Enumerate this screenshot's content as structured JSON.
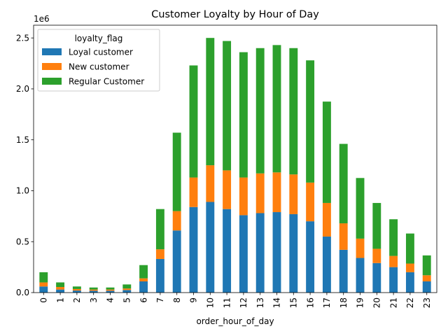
{
  "chart_data": {
    "type": "bar",
    "stacked": true,
    "title": "Customer Loyalty by Hour of Day",
    "xlabel": "order_hour_of_day",
    "ylabel": "",
    "y_offset_label": "1e6",
    "ylim": [
      0,
      2625000
    ],
    "yticks": [
      0,
      500000,
      1000000,
      1500000,
      2000000,
      2500000
    ],
    "ytick_labels": [
      "0.0",
      "0.5",
      "1.0",
      "1.5",
      "2.0",
      "2.5"
    ],
    "categories": [
      "0",
      "1",
      "2",
      "3",
      "4",
      "5",
      "6",
      "7",
      "8",
      "9",
      "10",
      "11",
      "12",
      "13",
      "14",
      "15",
      "16",
      "17",
      "18",
      "19",
      "20",
      "21",
      "22",
      "23"
    ],
    "legend": {
      "title": "loyalty_flag",
      "position": "upper-left"
    },
    "series": [
      {
        "name": "Loyal customer",
        "color": "#1f77b4",
        "values": [
          60000,
          30000,
          20000,
          18000,
          18000,
          25000,
          110000,
          330000,
          610000,
          840000,
          890000,
          820000,
          760000,
          780000,
          790000,
          770000,
          700000,
          550000,
          420000,
          340000,
          290000,
          250000,
          200000,
          110000
        ]
      },
      {
        "name": "New customer",
        "color": "#ff7f0e",
        "values": [
          40000,
          25000,
          15000,
          12000,
          12000,
          15000,
          30000,
          95000,
          190000,
          290000,
          360000,
          380000,
          370000,
          390000,
          390000,
          390000,
          380000,
          330000,
          260000,
          190000,
          140000,
          110000,
          85000,
          60000
        ]
      },
      {
        "name": "Regular Customer",
        "color": "#2ca02c",
        "values": [
          100000,
          45000,
          25000,
          20000,
          20000,
          40000,
          130000,
          395000,
          770000,
          1100000,
          1250000,
          1270000,
          1230000,
          1230000,
          1250000,
          1240000,
          1200000,
          995000,
          780000,
          595000,
          450000,
          360000,
          295000,
          195000
        ]
      }
    ]
  }
}
